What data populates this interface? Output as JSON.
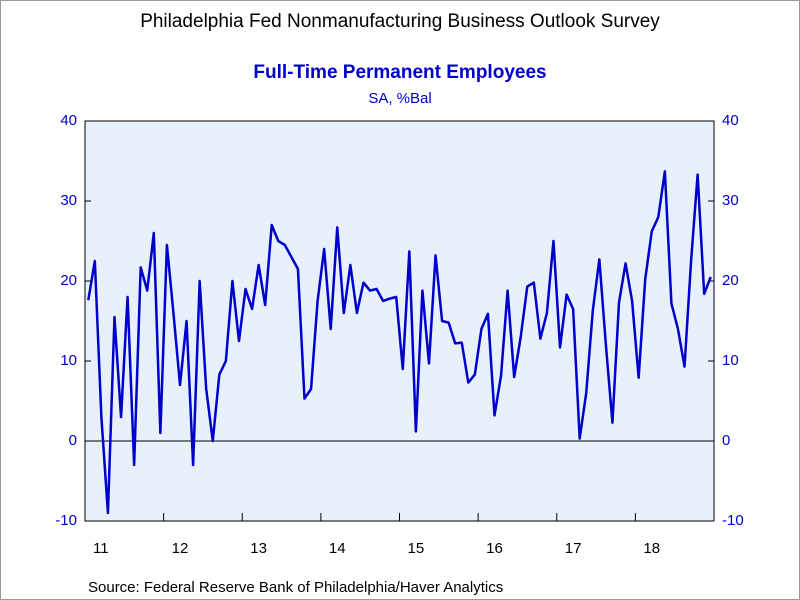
{
  "chart_data": {
    "type": "line",
    "title": "Philadelphia Fed Nonmanufacturing Business Outlook Survey",
    "subtitle": "Full-Time Permanent Employees",
    "units": "SA, %Bal",
    "source": "Source:  Federal Reserve Bank of Philadelphia/Haver Analytics",
    "categories": [
      "11",
      null,
      null,
      null,
      null,
      null,
      null,
      null,
      null,
      null,
      null,
      null,
      "12",
      null,
      null,
      null,
      null,
      null,
      null,
      null,
      null,
      null,
      null,
      null,
      "13",
      null,
      null,
      null,
      null,
      null,
      null,
      null,
      null,
      null,
      null,
      null,
      "14",
      null,
      null,
      null,
      null,
      null,
      null,
      null,
      null,
      null,
      null,
      null,
      "15",
      null,
      null,
      null,
      null,
      null,
      null,
      null,
      null,
      null,
      null,
      null,
      "16",
      null,
      null,
      null,
      null,
      null,
      null,
      null,
      null,
      null,
      null,
      null,
      "17",
      null,
      null,
      null,
      null,
      null,
      null,
      null,
      null,
      null,
      null,
      null,
      "18",
      null,
      null,
      null,
      null,
      null,
      null,
      null,
      null,
      null,
      null,
      null
    ],
    "series": [
      {
        "color": "#0000cc",
        "values": [
          17.6,
          22.5,
          3,
          -9,
          15.5,
          3,
          18,
          -3,
          21.7,
          18.8,
          26,
          1,
          24.5,
          16,
          7,
          15,
          -3,
          20,
          6.5,
          0,
          8.3,
          10,
          20,
          12.5,
          19,
          16.5,
          22,
          17,
          27,
          25,
          24.5,
          23,
          21.5,
          5.3,
          6.5,
          17.5,
          24,
          14,
          26.7,
          16,
          22,
          16,
          19.8,
          18.8,
          19,
          17.5,
          17.8,
          18,
          9,
          23.7,
          1.2,
          18.8,
          9.7,
          23.2,
          15,
          14.8,
          12.2,
          12.3,
          7.3,
          8.3,
          14,
          15.9,
          3.2,
          8.2,
          18.8,
          8,
          13,
          19.3,
          19.8,
          12.8,
          16,
          25,
          11.7,
          18.3,
          16.5,
          0.3,
          6,
          16.3,
          22.7,
          12,
          2.3,
          17.3,
          22.2,
          17.5,
          7.9,
          20.2,
          26.2,
          28,
          33.7,
          17.2,
          14,
          9.3,
          22.5,
          33.3,
          18.4,
          20.5
        ]
      }
    ],
    "ylim": [
      -10,
      40
    ],
    "yticks": [
      -10,
      0,
      10,
      20,
      30,
      40
    ],
    "background": "#e8f0fc",
    "axis_color": "#0000cc"
  }
}
